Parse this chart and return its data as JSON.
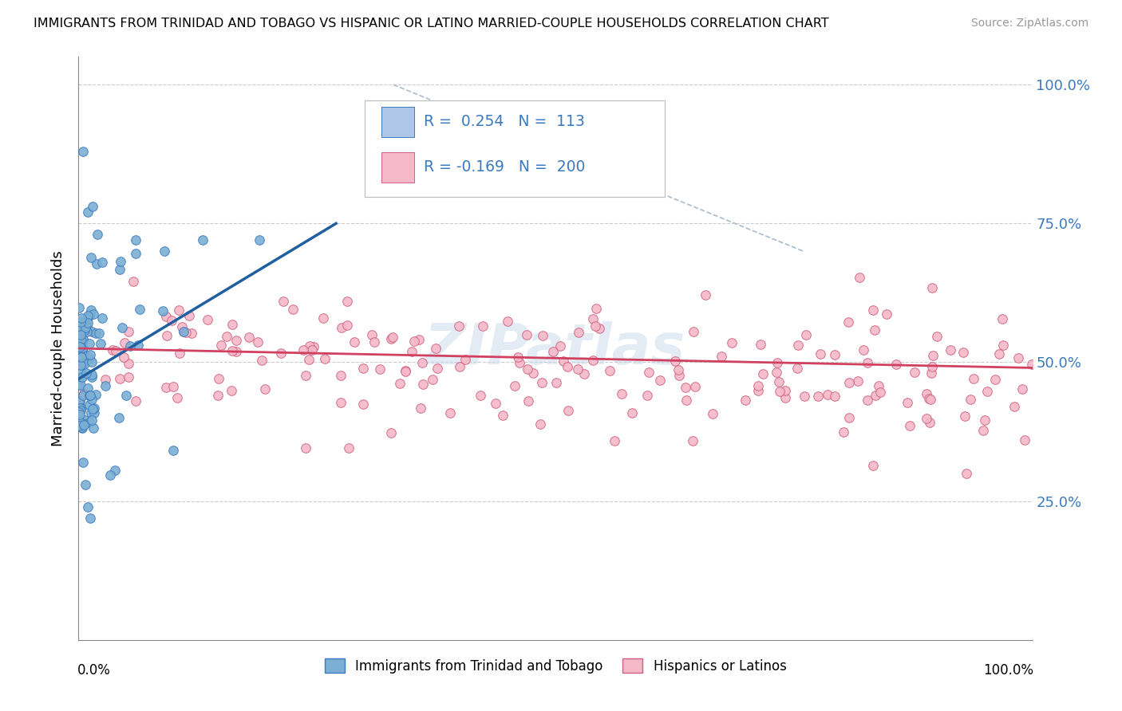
{
  "title": "IMMIGRANTS FROM TRINIDAD AND TOBAGO VS HISPANIC OR LATINO MARRIED-COUPLE HOUSEHOLDS CORRELATION CHART",
  "source": "Source: ZipAtlas.com",
  "ylabel": "Married-couple Households",
  "legend_label1": "Immigrants from Trinidad and Tobago",
  "legend_label2": "Hispanics or Latinos",
  "ytick_values": [
    0.25,
    0.5,
    0.75,
    1.0
  ],
  "xlim": [
    0.0,
    1.0
  ],
  "ylim": [
    0.0,
    1.05
  ],
  "blue_R": 0.254,
  "blue_N": 113,
  "pink_R": -0.169,
  "pink_N": 200,
  "dot_size": 70,
  "blue_dot_color": "#7bafd4",
  "blue_dot_edge": "#3a7abf",
  "pink_dot_color": "#f4b8c8",
  "pink_dot_edge": "#d06080",
  "blue_line_color": "#2060a0",
  "pink_line_color": "#d04060",
  "diag_line_color": "#aabbcc",
  "background_color": "#ffffff",
  "grid_color": "#cccccc",
  "legend_box_color": "#aec6e8",
  "legend_box_pink": "#f4b8c8",
  "right_axis_color": "#3a7abf",
  "watermark_color": "#c8d8ea"
}
